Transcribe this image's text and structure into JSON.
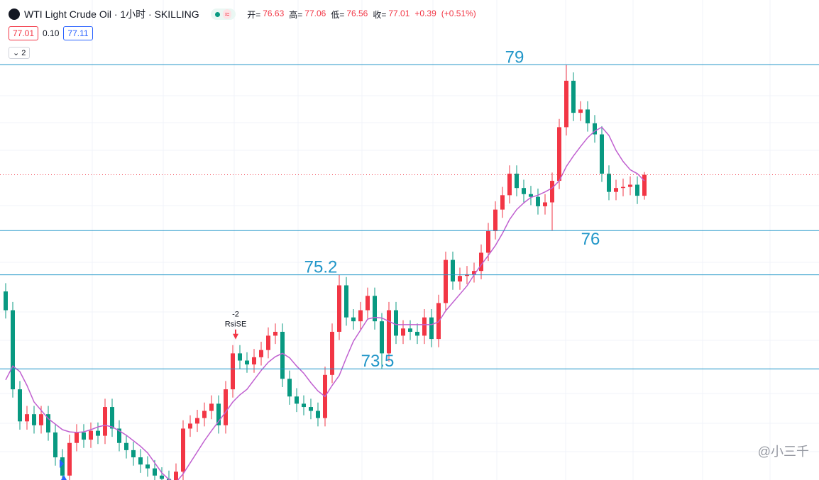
{
  "header": {
    "title": "WTI Light Crude Oil · 1小时 · SKILLING",
    "open_label": "开=",
    "open": 76.63,
    "high_label": "高=",
    "high": 77.06,
    "low_label": "低=",
    "low": 76.56,
    "close_label": "收=",
    "close": 77.01,
    "change": "+0.39",
    "change_pct": "(+0.51%)",
    "sell": 77.01,
    "spread": 0.1,
    "buy": 77.11,
    "indicator_count": "2",
    "watermark": "@小三千"
  },
  "chart_data": {
    "type": "candlestick",
    "up_color": "#f23645",
    "down_color": "#089981",
    "ma_color": "#c060d0",
    "level_color": "#2196c8",
    "ylim": [
      71.49,
      80.17
    ],
    "open": [
      74.9,
      74.56,
      73.13,
      72.55,
      72.68,
      72.48,
      72.68,
      72.35,
      71.9,
      71.57,
      72.16,
      72.35,
      72.22,
      72.38,
      72.29,
      72.81,
      72.42,
      72.16,
      72.03,
      71.9,
      71.77,
      71.7,
      71.57,
      71.51,
      71.44,
      71.64,
      72.42,
      72.51,
      72.61,
      72.74,
      72.87,
      72.48,
      73.13,
      73.78,
      73.65,
      73.58,
      73.71,
      73.84,
      74.1,
      74.17,
      73.32,
      73.0,
      72.87,
      72.81,
      72.74,
      72.61,
      73.39,
      74.17,
      75.01,
      74.43,
      74.36,
      74.56,
      74.82,
      74.36,
      73.78,
      74.56,
      74.1,
      74.23,
      74.17,
      74.1,
      74.43,
      74.04,
      74.69,
      75.47,
      75.08,
      75.18,
      75.21,
      75.27,
      75.6,
      75.99,
      76.38,
      76.64,
      77.03,
      76.77,
      76.66,
      76.61,
      76.44,
      76.51,
      76.9,
      77.87,
      78.71,
      78.13,
      78.19,
      77.94,
      77.74,
      77.03,
      76.7,
      76.77,
      76.79,
      76.83,
      76.63
    ],
    "high": [
      75.05,
      74.71,
      73.28,
      72.83,
      72.83,
      72.83,
      72.83,
      72.5,
      72.05,
      72.31,
      72.5,
      72.5,
      72.53,
      72.53,
      72.96,
      72.96,
      72.57,
      72.31,
      72.18,
      72.05,
      71.92,
      71.85,
      71.72,
      71.66,
      71.79,
      72.57,
      72.66,
      72.76,
      72.89,
      73.02,
      73.02,
      73.28,
      73.93,
      73.93,
      73.8,
      73.86,
      73.99,
      74.25,
      74.32,
      74.32,
      73.47,
      73.15,
      73.02,
      72.96,
      72.89,
      73.54,
      74.32,
      75.2,
      75.16,
      74.58,
      74.71,
      74.97,
      74.97,
      74.51,
      74.71,
      74.71,
      74.38,
      74.38,
      74.32,
      74.58,
      74.58,
      74.84,
      75.62,
      75.62,
      75.33,
      75.36,
      75.42,
      75.75,
      76.14,
      76.53,
      76.79,
      77.18,
      77.18,
      76.92,
      76.81,
      76.76,
      76.66,
      77.05,
      78.02,
      79.0,
      78.86,
      78.34,
      78.34,
      78.09,
      77.89,
      77.18,
      76.92,
      76.94,
      76.98,
      76.98,
      77.06
    ],
    "low": [
      74.41,
      72.98,
      72.4,
      72.4,
      72.33,
      72.33,
      72.2,
      71.75,
      71.42,
      71.42,
      72.01,
      72.07,
      72.07,
      72.14,
      72.14,
      72.27,
      72.01,
      71.88,
      71.75,
      71.62,
      71.55,
      71.42,
      71.36,
      71.36,
      71.36,
      71.49,
      72.27,
      72.36,
      72.46,
      72.59,
      72.33,
      72.33,
      72.98,
      73.5,
      73.43,
      73.43,
      73.56,
      73.69,
      73.95,
      73.17,
      72.85,
      72.72,
      72.66,
      72.59,
      72.46,
      72.46,
      73.24,
      74.02,
      74.28,
      74.21,
      74.21,
      74.41,
      74.21,
      73.5,
      73.63,
      73.95,
      73.95,
      74.02,
      73.95,
      73.95,
      73.89,
      73.89,
      74.54,
      74.93,
      74.93,
      75.03,
      75.06,
      75.12,
      75.45,
      75.84,
      76.23,
      76.49,
      76.62,
      76.51,
      76.46,
      76.29,
      76.29,
      76.0,
      76.75,
      77.72,
      77.98,
      77.98,
      77.79,
      77.59,
      76.88,
      76.55,
      76.55,
      76.62,
      76.64,
      76.48,
      76.56
    ],
    "close": [
      74.56,
      73.13,
      72.55,
      72.68,
      72.48,
      72.68,
      72.35,
      71.9,
      71.57,
      72.16,
      72.35,
      72.22,
      72.38,
      72.29,
      72.81,
      72.42,
      72.16,
      72.03,
      71.9,
      71.77,
      71.7,
      71.57,
      71.51,
      71.44,
      71.64,
      72.42,
      72.51,
      72.61,
      72.74,
      72.87,
      72.48,
      73.13,
      73.78,
      73.65,
      73.58,
      73.71,
      73.84,
      74.1,
      74.17,
      73.32,
      73.0,
      72.87,
      72.81,
      72.74,
      72.61,
      73.39,
      74.17,
      75.01,
      74.43,
      74.36,
      74.56,
      74.82,
      74.36,
      73.78,
      74.56,
      74.1,
      74.23,
      74.17,
      74.1,
      74.43,
      74.04,
      74.69,
      75.47,
      75.08,
      75.18,
      75.21,
      75.27,
      75.6,
      75.99,
      76.38,
      76.64,
      77.03,
      76.77,
      76.66,
      76.61,
      76.44,
      76.51,
      76.9,
      77.87,
      78.71,
      78.13,
      78.19,
      77.94,
      77.74,
      77.03,
      76.7,
      76.77,
      76.79,
      76.83,
      76.63,
      77.01
    ],
    "ma": [
      73.3,
      73.55,
      73.45,
      73.2,
      72.9,
      72.75,
      72.6,
      72.5,
      72.4,
      72.36,
      72.35,
      72.36,
      72.4,
      72.45,
      72.48,
      72.45,
      72.38,
      72.3,
      72.2,
      72.1,
      71.98,
      71.8,
      71.62,
      71.5,
      71.45,
      71.6,
      71.8,
      72.0,
      72.2,
      72.38,
      72.55,
      72.72,
      72.9,
      73.03,
      73.13,
      73.3,
      73.47,
      73.62,
      73.72,
      73.78,
      73.7,
      73.55,
      73.42,
      73.25,
      73.1,
      73.0,
      73.2,
      73.38,
      73.7,
      74.0,
      74.2,
      74.4,
      74.43,
      74.42,
      74.36,
      74.3,
      74.3,
      74.3,
      74.3,
      74.3,
      74.3,
      74.35,
      74.55,
      74.7,
      74.85,
      75.0,
      75.2,
      75.38,
      75.55,
      75.73,
      75.95,
      76.2,
      76.38,
      76.5,
      76.6,
      76.64,
      76.7,
      76.77,
      76.9,
      77.16,
      77.35,
      77.52,
      77.68,
      77.8,
      77.87,
      77.72,
      77.45,
      77.25,
      77.1,
      77.03,
      76.9
    ],
    "levels": [
      79,
      76,
      75.2,
      73.5
    ],
    "signal": {
      "index": 32,
      "count": "-2",
      "label": "RsiSE"
    }
  }
}
